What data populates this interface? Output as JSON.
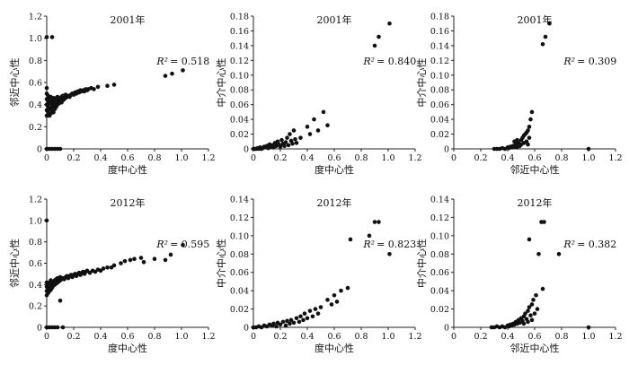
{
  "chart_data": [
    {
      "type": "scatter",
      "title": "2001年",
      "xlabel": "度中心性",
      "ylabel": "邻近中心性",
      "xlim": [
        0,
        1.2
      ],
      "ylim": [
        0,
        1.2
      ],
      "xticks": [
        "0",
        "0.2",
        "0.4",
        "0.6",
        "0.8",
        "1.0",
        "1.2"
      ],
      "yticks": [
        "0",
        "0.2",
        "0.4",
        "0.6",
        "0.8",
        "1.0",
        "1.2"
      ],
      "r2_label": "R²",
      "r2_value": "= 0.518",
      "r2_pos": "top-right",
      "color": "#111111",
      "points": [
        [
          0.0,
          1.01
        ],
        [
          0.04,
          1.01
        ],
        [
          0.0,
          0.3
        ],
        [
          0.0,
          0.35
        ],
        [
          0.0,
          0.4
        ],
        [
          0.0,
          0.45
        ],
        [
          0.0,
          0.5
        ],
        [
          0.0,
          0.55
        ],
        [
          0.01,
          0.33
        ],
        [
          0.01,
          0.38
        ],
        [
          0.01,
          0.43
        ],
        [
          0.01,
          0.48
        ],
        [
          0.02,
          0.3
        ],
        [
          0.02,
          0.36
        ],
        [
          0.02,
          0.41
        ],
        [
          0.02,
          0.46
        ],
        [
          0.03,
          0.32
        ],
        [
          0.03,
          0.37
        ],
        [
          0.03,
          0.42
        ],
        [
          0.03,
          0.47
        ],
        [
          0.04,
          0.35
        ],
        [
          0.04,
          0.4
        ],
        [
          0.04,
          0.44
        ],
        [
          0.05,
          0.33
        ],
        [
          0.05,
          0.38
        ],
        [
          0.05,
          0.43
        ],
        [
          0.05,
          0.46
        ],
        [
          0.06,
          0.36
        ],
        [
          0.06,
          0.41
        ],
        [
          0.06,
          0.45
        ],
        [
          0.07,
          0.38
        ],
        [
          0.07,
          0.42
        ],
        [
          0.07,
          0.46
        ],
        [
          0.08,
          0.4
        ],
        [
          0.08,
          0.44
        ],
        [
          0.08,
          0.47
        ],
        [
          0.09,
          0.41
        ],
        [
          0.09,
          0.45
        ],
        [
          0.1,
          0.43
        ],
        [
          0.1,
          0.46
        ],
        [
          0.11,
          0.42
        ],
        [
          0.11,
          0.47
        ],
        [
          0.12,
          0.44
        ],
        [
          0.12,
          0.48
        ],
        [
          0.13,
          0.45
        ],
        [
          0.14,
          0.46
        ],
        [
          0.14,
          0.49
        ],
        [
          0.15,
          0.47
        ],
        [
          0.16,
          0.48
        ],
        [
          0.17,
          0.47
        ],
        [
          0.18,
          0.49
        ],
        [
          0.19,
          0.5
        ],
        [
          0.2,
          0.49
        ],
        [
          0.21,
          0.51
        ],
        [
          0.22,
          0.5
        ],
        [
          0.23,
          0.52
        ],
        [
          0.24,
          0.51
        ],
        [
          0.25,
          0.53
        ],
        [
          0.26,
          0.52
        ],
        [
          0.27,
          0.53
        ],
        [
          0.28,
          0.52
        ],
        [
          0.29,
          0.54
        ],
        [
          0.3,
          0.53
        ],
        [
          0.31,
          0.54
        ],
        [
          0.33,
          0.55
        ],
        [
          0.35,
          0.54
        ],
        [
          0.38,
          0.56
        ],
        [
          0.45,
          0.57
        ],
        [
          0.5,
          0.58
        ],
        [
          0.88,
          0.66
        ],
        [
          0.93,
          0.68
        ],
        [
          1.01,
          0.71
        ],
        [
          0.0,
          0.0
        ],
        [
          0.02,
          0.0
        ],
        [
          0.04,
          0.0
        ],
        [
          0.06,
          0.0
        ],
        [
          0.08,
          0.0
        ],
        [
          0.1,
          0.0
        ]
      ]
    },
    {
      "type": "scatter",
      "title": "2001年",
      "xlabel": "度中心性",
      "ylabel": "中介中心性",
      "xlim": [
        0,
        1.2
      ],
      "ylim": [
        0,
        0.18
      ],
      "xticks": [
        "0",
        "0.2",
        "0.4",
        "0.6",
        "0.8",
        "1.0",
        "1.2"
      ],
      "yticks": [
        "0",
        "0.02",
        "0.04",
        "0.06",
        "0.08",
        "0.10",
        "0.12",
        "0.14",
        "0.16",
        "0.18"
      ],
      "r2_label": "R²",
      "r2_value": "= 0.840",
      "r2_pos": "top-right",
      "color": "#111111",
      "points": [
        [
          0.0,
          0.0
        ],
        [
          0.01,
          0.0
        ],
        [
          0.02,
          0.0
        ],
        [
          0.03,
          0.001
        ],
        [
          0.04,
          0.0
        ],
        [
          0.05,
          0.002
        ],
        [
          0.06,
          0.0
        ],
        [
          0.07,
          0.001
        ],
        [
          0.08,
          0.003
        ],
        [
          0.09,
          0.002
        ],
        [
          0.1,
          0.004
        ],
        [
          0.11,
          0.001
        ],
        [
          0.12,
          0.006
        ],
        [
          0.13,
          0.003
        ],
        [
          0.14,
          0.005
        ],
        [
          0.15,
          0.002
        ],
        [
          0.16,
          0.008
        ],
        [
          0.17,
          0.004
        ],
        [
          0.18,
          0.01
        ],
        [
          0.19,
          0.006
        ],
        [
          0.2,
          0.003
        ],
        [
          0.21,
          0.012
        ],
        [
          0.22,
          0.007
        ],
        [
          0.23,
          0.004
        ],
        [
          0.24,
          0.009
        ],
        [
          0.25,
          0.015
        ],
        [
          0.26,
          0.005
        ],
        [
          0.27,
          0.02
        ],
        [
          0.28,
          0.011
        ],
        [
          0.29,
          0.007
        ],
        [
          0.3,
          0.025
        ],
        [
          0.31,
          0.013
        ],
        [
          0.32,
          0.008
        ],
        [
          0.35,
          0.015
        ],
        [
          0.4,
          0.03
        ],
        [
          0.42,
          0.02
        ],
        [
          0.45,
          0.04
        ],
        [
          0.48,
          0.025
        ],
        [
          0.52,
          0.05
        ],
        [
          0.55,
          0.032
        ],
        [
          0.9,
          0.14
        ],
        [
          0.93,
          0.152
        ],
        [
          1.01,
          0.17
        ]
      ]
    },
    {
      "type": "scatter",
      "title": "2001年",
      "xlabel": "邻近中心性",
      "ylabel": "中介中心性",
      "xlim": [
        0,
        1.2
      ],
      "ylim": [
        0,
        0.18
      ],
      "xticks": [
        "0",
        "0.2",
        "0.4",
        "0.6",
        "0.8",
        "1.0",
        "1.2"
      ],
      "yticks": [
        "0",
        "0.02",
        "0.04",
        "0.06",
        "0.08",
        "0.10",
        "0.12",
        "0.14",
        "0.16",
        "0.18"
      ],
      "r2_label": "R²",
      "r2_value": "= 0.309",
      "r2_pos": "top-right",
      "color": "#111111",
      "points": [
        [
          0.3,
          0.0
        ],
        [
          0.32,
          0.0
        ],
        [
          0.34,
          0.0
        ],
        [
          0.36,
          0.001
        ],
        [
          0.38,
          0.0
        ],
        [
          0.4,
          0.002
        ],
        [
          0.41,
          0.001
        ],
        [
          0.42,
          0.003
        ],
        [
          0.43,
          0.002
        ],
        [
          0.44,
          0.004
        ],
        [
          0.45,
          0.003
        ],
        [
          0.46,
          0.006
        ],
        [
          0.47,
          0.002
        ],
        [
          0.48,
          0.008
        ],
        [
          0.49,
          0.004
        ],
        [
          0.5,
          0.012
        ],
        [
          0.5,
          0.006
        ],
        [
          0.51,
          0.015
        ],
        [
          0.52,
          0.008
        ],
        [
          0.53,
          0.02
        ],
        [
          0.54,
          0.01
        ],
        [
          0.55,
          0.025
        ],
        [
          0.55,
          0.006
        ],
        [
          0.56,
          0.03
        ],
        [
          0.56,
          0.015
        ],
        [
          0.57,
          0.04
        ],
        [
          0.58,
          0.05
        ],
        [
          0.45,
          0.01
        ],
        [
          0.47,
          0.012
        ],
        [
          0.52,
          0.018
        ],
        [
          0.54,
          0.022
        ],
        [
          0.66,
          0.142
        ],
        [
          0.68,
          0.152
        ],
        [
          0.71,
          0.17
        ],
        [
          1.0,
          0.0
        ]
      ]
    },
    {
      "type": "scatter",
      "title": "2012年",
      "xlabel": "度中心性",
      "ylabel": "邻近中心性",
      "xlim": [
        0,
        1.2
      ],
      "ylim": [
        0,
        1.2
      ],
      "xticks": [
        "0",
        "0.2",
        "0.4",
        "0.6",
        "0.8",
        "1.0",
        "1.2"
      ],
      "yticks": [
        "0",
        "0.2",
        "0.4",
        "0.6",
        "0.8",
        "1.0",
        "1.2"
      ],
      "r2_label": "R²",
      "r2_value": "= 0.595",
      "r2_pos": "top-right",
      "color": "#111111",
      "points": [
        [
          0.0,
          1.0
        ],
        [
          0.0,
          0.3
        ],
        [
          0.0,
          0.34
        ],
        [
          0.0,
          0.38
        ],
        [
          0.0,
          0.42
        ],
        [
          0.01,
          0.32
        ],
        [
          0.01,
          0.36
        ],
        [
          0.01,
          0.4
        ],
        [
          0.02,
          0.34
        ],
        [
          0.02,
          0.38
        ],
        [
          0.02,
          0.42
        ],
        [
          0.03,
          0.35
        ],
        [
          0.03,
          0.4
        ],
        [
          0.03,
          0.44
        ],
        [
          0.04,
          0.37
        ],
        [
          0.04,
          0.42
        ],
        [
          0.05,
          0.39
        ],
        [
          0.05,
          0.43
        ],
        [
          0.06,
          0.4
        ],
        [
          0.06,
          0.44
        ],
        [
          0.07,
          0.41
        ],
        [
          0.07,
          0.45
        ],
        [
          0.08,
          0.42
        ],
        [
          0.08,
          0.46
        ],
        [
          0.09,
          0.43
        ],
        [
          0.1,
          0.44
        ],
        [
          0.1,
          0.47
        ],
        [
          0.11,
          0.45
        ],
        [
          0.12,
          0.46
        ],
        [
          0.13,
          0.45
        ],
        [
          0.14,
          0.47
        ],
        [
          0.15,
          0.48
        ],
        [
          0.16,
          0.46
        ],
        [
          0.17,
          0.48
        ],
        [
          0.18,
          0.49
        ],
        [
          0.19,
          0.47
        ],
        [
          0.2,
          0.49
        ],
        [
          0.21,
          0.5
        ],
        [
          0.22,
          0.48
        ],
        [
          0.23,
          0.5
        ],
        [
          0.24,
          0.51
        ],
        [
          0.25,
          0.49
        ],
        [
          0.26,
          0.51
        ],
        [
          0.27,
          0.52
        ],
        [
          0.28,
          0.5
        ],
        [
          0.29,
          0.52
        ],
        [
          0.3,
          0.53
        ],
        [
          0.32,
          0.51
        ],
        [
          0.34,
          0.53
        ],
        [
          0.36,
          0.52
        ],
        [
          0.38,
          0.54
        ],
        [
          0.4,
          0.53
        ],
        [
          0.42,
          0.55
        ],
        [
          0.45,
          0.56
        ],
        [
          0.48,
          0.56
        ],
        [
          0.5,
          0.58
        ],
        [
          0.55,
          0.6
        ],
        [
          0.58,
          0.62
        ],
        [
          0.62,
          0.63
        ],
        [
          0.65,
          0.64
        ],
        [
          0.7,
          0.65
        ],
        [
          0.72,
          0.61
        ],
        [
          0.8,
          0.64
        ],
        [
          0.88,
          0.63
        ],
        [
          0.92,
          0.68
        ],
        [
          1.01,
          0.77
        ],
        [
          0.0,
          0.0
        ],
        [
          0.02,
          0.0
        ],
        [
          0.04,
          0.0
        ],
        [
          0.06,
          0.0
        ],
        [
          0.08,
          0.0
        ],
        [
          0.12,
          0.0
        ],
        [
          0.1,
          0.25
        ]
      ]
    },
    {
      "type": "scatter",
      "title": "2012年",
      "xlabel": "度中心性",
      "ylabel": "中介中心性",
      "xlim": [
        0,
        1.2
      ],
      "ylim": [
        0,
        0.14
      ],
      "xticks": [
        "0",
        "0.2",
        "0.4",
        "0.6",
        "0.8",
        "1.0",
        "1.2"
      ],
      "yticks": [
        "0",
        "0.02",
        "0.04",
        "0.06",
        "0.08",
        "0.10",
        "0.12",
        "0.14"
      ],
      "r2_label": "R²",
      "r2_value": "= 0.823",
      "r2_pos": "top-right",
      "color": "#111111",
      "points": [
        [
          0.0,
          0.0
        ],
        [
          0.02,
          0.0
        ],
        [
          0.04,
          0.001
        ],
        [
          0.06,
          0.0
        ],
        [
          0.08,
          0.002
        ],
        [
          0.1,
          0.001
        ],
        [
          0.12,
          0.003
        ],
        [
          0.14,
          0.002
        ],
        [
          0.15,
          0.004
        ],
        [
          0.17,
          0.001
        ],
        [
          0.18,
          0.005
        ],
        [
          0.2,
          0.003
        ],
        [
          0.22,
          0.006
        ],
        [
          0.24,
          0.002
        ],
        [
          0.25,
          0.007
        ],
        [
          0.27,
          0.004
        ],
        [
          0.28,
          0.008
        ],
        [
          0.3,
          0.005
        ],
        [
          0.32,
          0.01
        ],
        [
          0.34,
          0.006
        ],
        [
          0.35,
          0.012
        ],
        [
          0.37,
          0.008
        ],
        [
          0.38,
          0.015
        ],
        [
          0.4,
          0.01
        ],
        [
          0.42,
          0.018
        ],
        [
          0.44,
          0.012
        ],
        [
          0.46,
          0.02
        ],
        [
          0.48,
          0.015
        ],
        [
          0.5,
          0.022
        ],
        [
          0.55,
          0.03
        ],
        [
          0.58,
          0.025
        ],
        [
          0.6,
          0.035
        ],
        [
          0.62,
          0.028
        ],
        [
          0.65,
          0.04
        ],
        [
          0.7,
          0.043
        ],
        [
          0.72,
          0.096
        ],
        [
          0.86,
          0.1
        ],
        [
          0.9,
          0.115
        ],
        [
          0.93,
          0.115
        ],
        [
          1.01,
          0.08
        ]
      ]
    },
    {
      "type": "scatter",
      "title": "2012年",
      "xlabel": "邻近中心性",
      "ylabel": "中介中心性",
      "xlim": [
        0,
        1.2
      ],
      "ylim": [
        0,
        0.14
      ],
      "xticks": [
        "0",
        "0.2",
        "0.4",
        "0.6",
        "0.8",
        "1.0",
        "1.2"
      ],
      "yticks": [
        "0",
        "0.02",
        "0.04",
        "0.06",
        "0.08",
        "0.10",
        "0.12",
        "0.14"
      ],
      "r2_label": "R²",
      "r2_value": "= 0.382",
      "r2_pos": "top-right",
      "color": "#111111",
      "points": [
        [
          0.28,
          0.0
        ],
        [
          0.3,
          0.0
        ],
        [
          0.32,
          0.001
        ],
        [
          0.34,
          0.0
        ],
        [
          0.36,
          0.001
        ],
        [
          0.38,
          0.0
        ],
        [
          0.4,
          0.002
        ],
        [
          0.41,
          0.001
        ],
        [
          0.42,
          0.003
        ],
        [
          0.43,
          0.002
        ],
        [
          0.44,
          0.004
        ],
        [
          0.45,
          0.003
        ],
        [
          0.46,
          0.006
        ],
        [
          0.47,
          0.004
        ],
        [
          0.48,
          0.008
        ],
        [
          0.49,
          0.005
        ],
        [
          0.5,
          0.01
        ],
        [
          0.51,
          0.007
        ],
        [
          0.52,
          0.012
        ],
        [
          0.52,
          0.004
        ],
        [
          0.53,
          0.015
        ],
        [
          0.54,
          0.009
        ],
        [
          0.55,
          0.018
        ],
        [
          0.55,
          0.006
        ],
        [
          0.56,
          0.022
        ],
        [
          0.57,
          0.013
        ],
        [
          0.58,
          0.025
        ],
        [
          0.58,
          0.008
        ],
        [
          0.59,
          0.03
        ],
        [
          0.6,
          0.015
        ],
        [
          0.61,
          0.035
        ],
        [
          0.62,
          0.02
        ],
        [
          0.56,
          0.096
        ],
        [
          0.63,
          0.08
        ],
        [
          0.65,
          0.115
        ],
        [
          0.67,
          0.115
        ],
        [
          0.78,
          0.08
        ],
        [
          0.66,
          0.042
        ],
        [
          1.0,
          0.0
        ]
      ]
    }
  ]
}
